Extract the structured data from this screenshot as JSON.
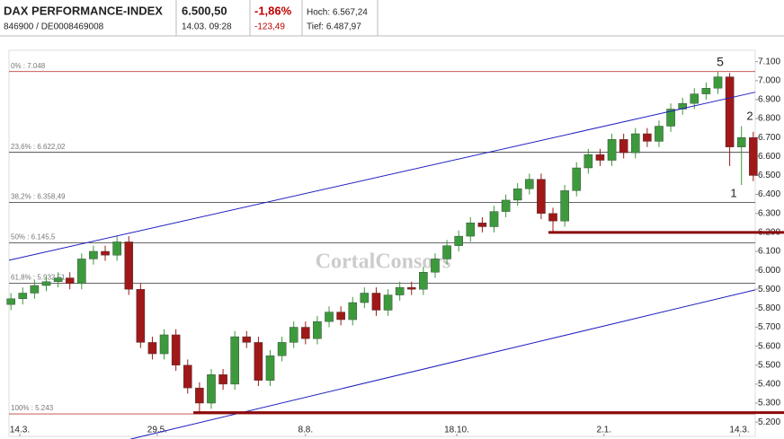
{
  "header": {
    "name": "DAX PERFORMANCE-INDEX",
    "ids": "846900  /  DE0008469008",
    "price": "6.500,50",
    "time": "14.03. 09:28",
    "change_pct": "-1,86%",
    "change_abs": "-123,49",
    "high": "Hoch: 6.567,24",
    "low": "Tief: 6.487,97"
  },
  "watermark": "CortalConsors",
  "chart_data": {
    "type": "candlestick",
    "x": [
      1,
      7,
      13,
      19,
      25,
      31,
      37,
      43,
      49,
      55,
      61,
      67,
      73,
      79,
      85,
      91,
      97,
      103,
      109,
      115,
      121,
      127,
      133,
      139,
      145,
      151,
      157,
      163,
      169,
      175,
      181,
      187,
      193,
      199,
      205,
      211,
      217,
      223,
      229,
      235,
      241,
      247,
      253,
      259,
      265,
      271,
      277,
      283,
      289,
      295,
      301,
      307,
      313,
      319,
      325,
      331,
      337,
      343,
      349,
      355,
      361,
      367,
      373,
      379
    ],
    "open": [
      5820,
      5850,
      5880,
      5920,
      5940,
      5960,
      5930,
      6060,
      6100,
      6080,
      6150,
      5900,
      5620,
      5560,
      5660,
      5500,
      5380,
      5300,
      5450,
      5400,
      5650,
      5620,
      5420,
      5550,
      5620,
      5700,
      5640,
      5730,
      5780,
      5740,
      5830,
      5880,
      5790,
      5870,
      5910,
      5900,
      5990,
      6060,
      6130,
      6180,
      6250,
      6230,
      6310,
      6370,
      6430,
      6480,
      6300,
      6260,
      6420,
      6540,
      6610,
      6580,
      6690,
      6620,
      6720,
      6680,
      6760,
      6850,
      6880,
      6930,
      6960,
      7020,
      6650,
      6700
    ],
    "high": [
      5880,
      5910,
      5950,
      5970,
      5990,
      5990,
      6090,
      6130,
      6130,
      6180,
      6180,
      5930,
      5650,
      5690,
      5690,
      5530,
      5410,
      5480,
      5480,
      5680,
      5680,
      5650,
      5580,
      5650,
      5730,
      5730,
      5760,
      5810,
      5810,
      5860,
      5910,
      5910,
      5900,
      5940,
      5940,
      6020,
      6090,
      6160,
      6210,
      6280,
      6280,
      6340,
      6400,
      6460,
      6510,
      6510,
      6330,
      6450,
      6570,
      6640,
      6640,
      6720,
      6720,
      6750,
      6750,
      6790,
      6880,
      6910,
      6960,
      6990,
      7048,
      7040,
      6760,
      6730
    ],
    "low": [
      5790,
      5820,
      5850,
      5890,
      5910,
      5900,
      5900,
      6030,
      6050,
      6050,
      5870,
      5590,
      5530,
      5530,
      5470,
      5350,
      5243,
      5270,
      5370,
      5370,
      5590,
      5390,
      5390,
      5520,
      5590,
      5610,
      5610,
      5700,
      5710,
      5710,
      5800,
      5760,
      5760,
      5840,
      5870,
      5870,
      5960,
      6030,
      6100,
      6150,
      6200,
      6200,
      6280,
      6340,
      6400,
      6270,
      6200,
      6230,
      6390,
      6510,
      6550,
      6550,
      6590,
      6590,
      6650,
      6650,
      6730,
      6820,
      6850,
      6900,
      6930,
      6550,
      6450,
      6470
    ],
    "close": [
      5850,
      5880,
      5920,
      5940,
      5960,
      5930,
      6060,
      6100,
      6080,
      6150,
      5900,
      5620,
      5560,
      5660,
      5500,
      5380,
      5300,
      5450,
      5400,
      5650,
      5620,
      5420,
      5550,
      5620,
      5700,
      5640,
      5730,
      5780,
      5740,
      5830,
      5880,
      5790,
      5870,
      5910,
      5900,
      5990,
      6060,
      6130,
      6180,
      6250,
      6230,
      6310,
      6370,
      6430,
      6480,
      6300,
      6260,
      6420,
      6540,
      6610,
      6580,
      6690,
      6620,
      6720,
      6680,
      6760,
      6850,
      6880,
      6930,
      6960,
      7020,
      6650,
      6700,
      6500
    ],
    "up_color": "#3c9a3c",
    "down_color": "#a01818",
    "xlim": [
      0,
      380
    ],
    "xticks": [
      {
        "value": 5.5,
        "label": "14.3."
      },
      {
        "value": 75.5,
        "label": "29.5."
      },
      {
        "value": 151,
        "label": "8.8."
      },
      {
        "value": 228,
        "label": "18.10."
      },
      {
        "value": 303,
        "label": "2.1."
      },
      {
        "value": 372,
        "label": "14.3."
      }
    ],
    "ylim": [
      5125,
      7160
    ],
    "yticks": [
      {
        "value": 5200,
        "label": "5.200"
      },
      {
        "value": 5300,
        "label": "5.300"
      },
      {
        "value": 5400,
        "label": "5.400"
      },
      {
        "value": 5500,
        "label": "5.500"
      },
      {
        "value": 5600,
        "label": "5.600"
      },
      {
        "value": 5700,
        "label": "5.700"
      },
      {
        "value": 5800,
        "label": "5.800"
      },
      {
        "value": 5900,
        "label": "5.900"
      },
      {
        "value": 6000,
        "label": "6.000"
      },
      {
        "value": 6100,
        "label": "6.100"
      },
      {
        "value": 6200,
        "label": "6.200"
      },
      {
        "value": 6300,
        "label": "6.300"
      },
      {
        "value": 6400,
        "label": "6.400"
      },
      {
        "value": 6500,
        "label": "6.500"
      },
      {
        "value": 6600,
        "label": "6.600"
      },
      {
        "value": 6700,
        "label": "6.700"
      },
      {
        "value": 6800,
        "label": "6.800"
      },
      {
        "value": 6900,
        "label": "6.900"
      },
      {
        "value": 7000,
        "label": "7.000"
      },
      {
        "value": 7100,
        "label": "7.100"
      }
    ],
    "levels": [
      {
        "value": 7048,
        "label": "0% : 7.048",
        "color": "#c04040"
      },
      {
        "value": 6622.02,
        "label": "23,6% : 6.622,02",
        "color": "#333333"
      },
      {
        "value": 6358.49,
        "label": "38,2% : 6.358,49",
        "color": "#333333"
      },
      {
        "value": 6145.5,
        "label": "50% : 6.145,5",
        "color": "#333333"
      },
      {
        "value": 5932.51,
        "label": "61,8% : 5.932,51",
        "color": "#333333"
      },
      {
        "value": 5243,
        "label": "100% : 5.243",
        "color": "#c04040"
      }
    ],
    "trendlines": [
      {
        "x": [
          0,
          380
        ],
        "y": [
          6053,
          6939
        ],
        "color": "#2020c0"
      },
      {
        "x": [
          61.8,
          380
        ],
        "y": [
          5110,
          5897
        ],
        "color": "#2020c0"
      }
    ],
    "supports": [
      {
        "x": 274.7,
        "y": 6200,
        "color": "#8b0a0a"
      },
      {
        "x": 93.9,
        "y": 5250,
        "color": "#8b0a0a"
      }
    ],
    "annotations": [
      {
        "text": "5",
        "color": "#e00000"
      },
      {
        "text": "2",
        "color": "#111111"
      },
      {
        "text": "1",
        "color": "#111111"
      }
    ]
  }
}
